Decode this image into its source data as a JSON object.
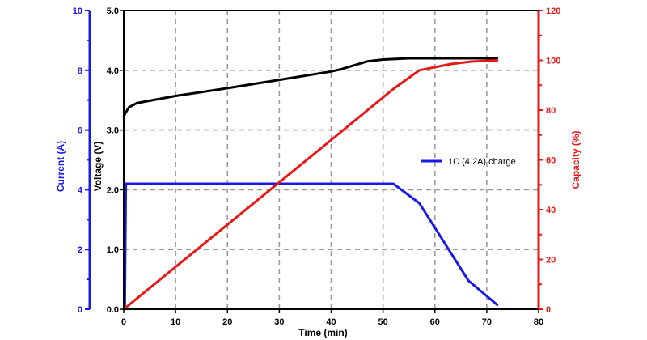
{
  "chart_data": {
    "type": "line",
    "x": {
      "label": "Time (min)",
      "range": [
        0,
        80
      ],
      "ticks": [
        0,
        10,
        20,
        30,
        40,
        50,
        60,
        70,
        80
      ],
      "color": "#000000"
    },
    "axes": {
      "current": {
        "label": "Current (A)",
        "range": [
          0,
          10
        ],
        "ticks": [
          0,
          2,
          4,
          6,
          8,
          10
        ],
        "tick_labels": [
          "0",
          "2",
          "4",
          "6",
          "8",
          "10"
        ],
        "color": "#1a1ae6"
      },
      "voltage": {
        "label": "Voltage (V)",
        "range": [
          0,
          5
        ],
        "ticks": [
          0,
          1,
          2,
          3,
          4,
          5
        ],
        "tick_labels": [
          "0.0",
          "1.0",
          "2.0",
          "3.0",
          "4.0",
          "5.0"
        ],
        "color": "#000000"
      },
      "capacity": {
        "label": "Capacity (%)",
        "range": [
          0,
          120
        ],
        "ticks": [
          0,
          20,
          40,
          60,
          80,
          100,
          120
        ],
        "tick_labels": [
          "0",
          "20",
          "40",
          "60",
          "80",
          "100",
          "120"
        ],
        "color": "#e61919"
      }
    },
    "grid": true,
    "legend": {
      "position": "right-middle",
      "entries": [
        "1C (4.2A) charge"
      ]
    },
    "series": [
      {
        "key": "voltage",
        "axis": "voltage",
        "color": "#000000",
        "x": [
          0,
          0.3,
          1,
          2.5,
          10,
          20,
          30,
          40,
          42,
          47,
          50,
          55,
          60,
          65,
          72
        ],
        "y": [
          3.22,
          3.28,
          3.38,
          3.45,
          3.57,
          3.7,
          3.84,
          3.98,
          4.02,
          4.15,
          4.18,
          4.2,
          4.2,
          4.2,
          4.2
        ]
      },
      {
        "key": "current",
        "axis": "current",
        "color": "#1a1ae6",
        "x": [
          0,
          0.2,
          0.4,
          10,
          20,
          30,
          40,
          52,
          57,
          66.5,
          72
        ],
        "y": [
          0,
          0,
          4.2,
          4.2,
          4.2,
          4.2,
          4.2,
          4.2,
          3.55,
          0.95,
          0.15
        ]
      },
      {
        "key": "capacity",
        "axis": "capacity",
        "color": "#e61919",
        "x": [
          0,
          10,
          20,
          30,
          40,
          52,
          57,
          63,
          67,
          72
        ],
        "y": [
          0,
          17,
          34,
          51,
          68,
          88.5,
          96,
          98.5,
          99.5,
          100
        ]
      }
    ]
  }
}
